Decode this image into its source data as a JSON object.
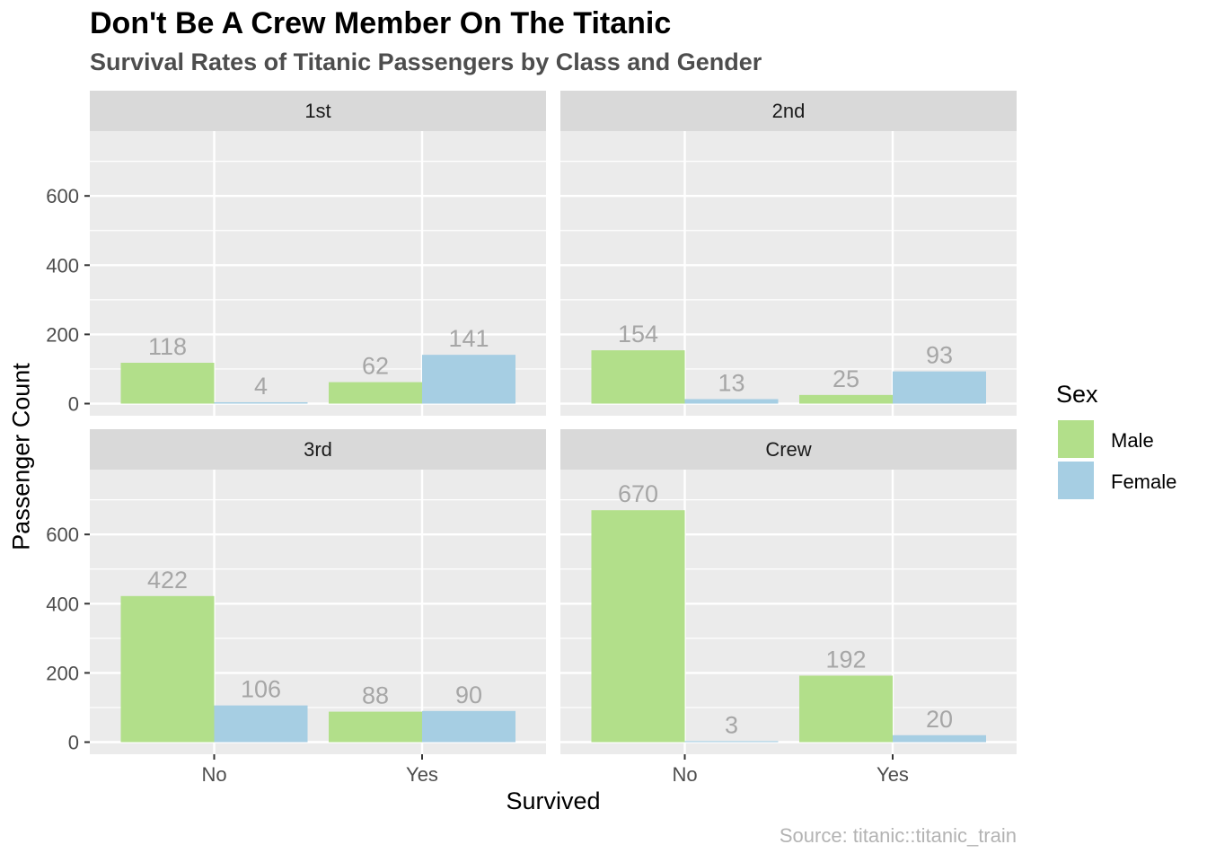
{
  "chart_data": {
    "type": "bar",
    "title": "Don't Be A Crew Member On The Titanic",
    "subtitle": "Survival Rates of Titanic Passengers by Class and Gender",
    "caption": "Source: titanic::titanic_train",
    "xlabel": "Survived",
    "ylabel": "Passenger Count",
    "categories": [
      "No",
      "Yes"
    ],
    "ylim": [
      0,
      780
    ],
    "yticks": [
      0,
      200,
      400,
      600
    ],
    "grid": true,
    "legend": {
      "title": "Sex",
      "position": "right",
      "entries": [
        {
          "name": "Male",
          "color": "#b2df8a"
        },
        {
          "name": "Female",
          "color": "#a6cee3"
        }
      ]
    },
    "facets": [
      {
        "label": "1st",
        "series": [
          {
            "name": "Male",
            "values": [
              118,
              62
            ]
          },
          {
            "name": "Female",
            "values": [
              4,
              141
            ]
          }
        ]
      },
      {
        "label": "2nd",
        "series": [
          {
            "name": "Male",
            "values": [
              154,
              25
            ]
          },
          {
            "name": "Female",
            "values": [
              13,
              93
            ]
          }
        ]
      },
      {
        "label": "3rd",
        "series": [
          {
            "name": "Male",
            "values": [
              422,
              88
            ]
          },
          {
            "name": "Female",
            "values": [
              106,
              90
            ]
          }
        ]
      },
      {
        "label": "Crew",
        "series": [
          {
            "name": "Male",
            "values": [
              670,
              192
            ]
          },
          {
            "name": "Female",
            "values": [
              3,
              20
            ]
          }
        ]
      }
    ]
  },
  "colors": {
    "panel_bg": "#ebebeb",
    "strip_bg": "#d9d9d9",
    "grid": "#ffffff",
    "label_text": "#a6a6a6",
    "axis_text": "#4d4d4d"
  }
}
